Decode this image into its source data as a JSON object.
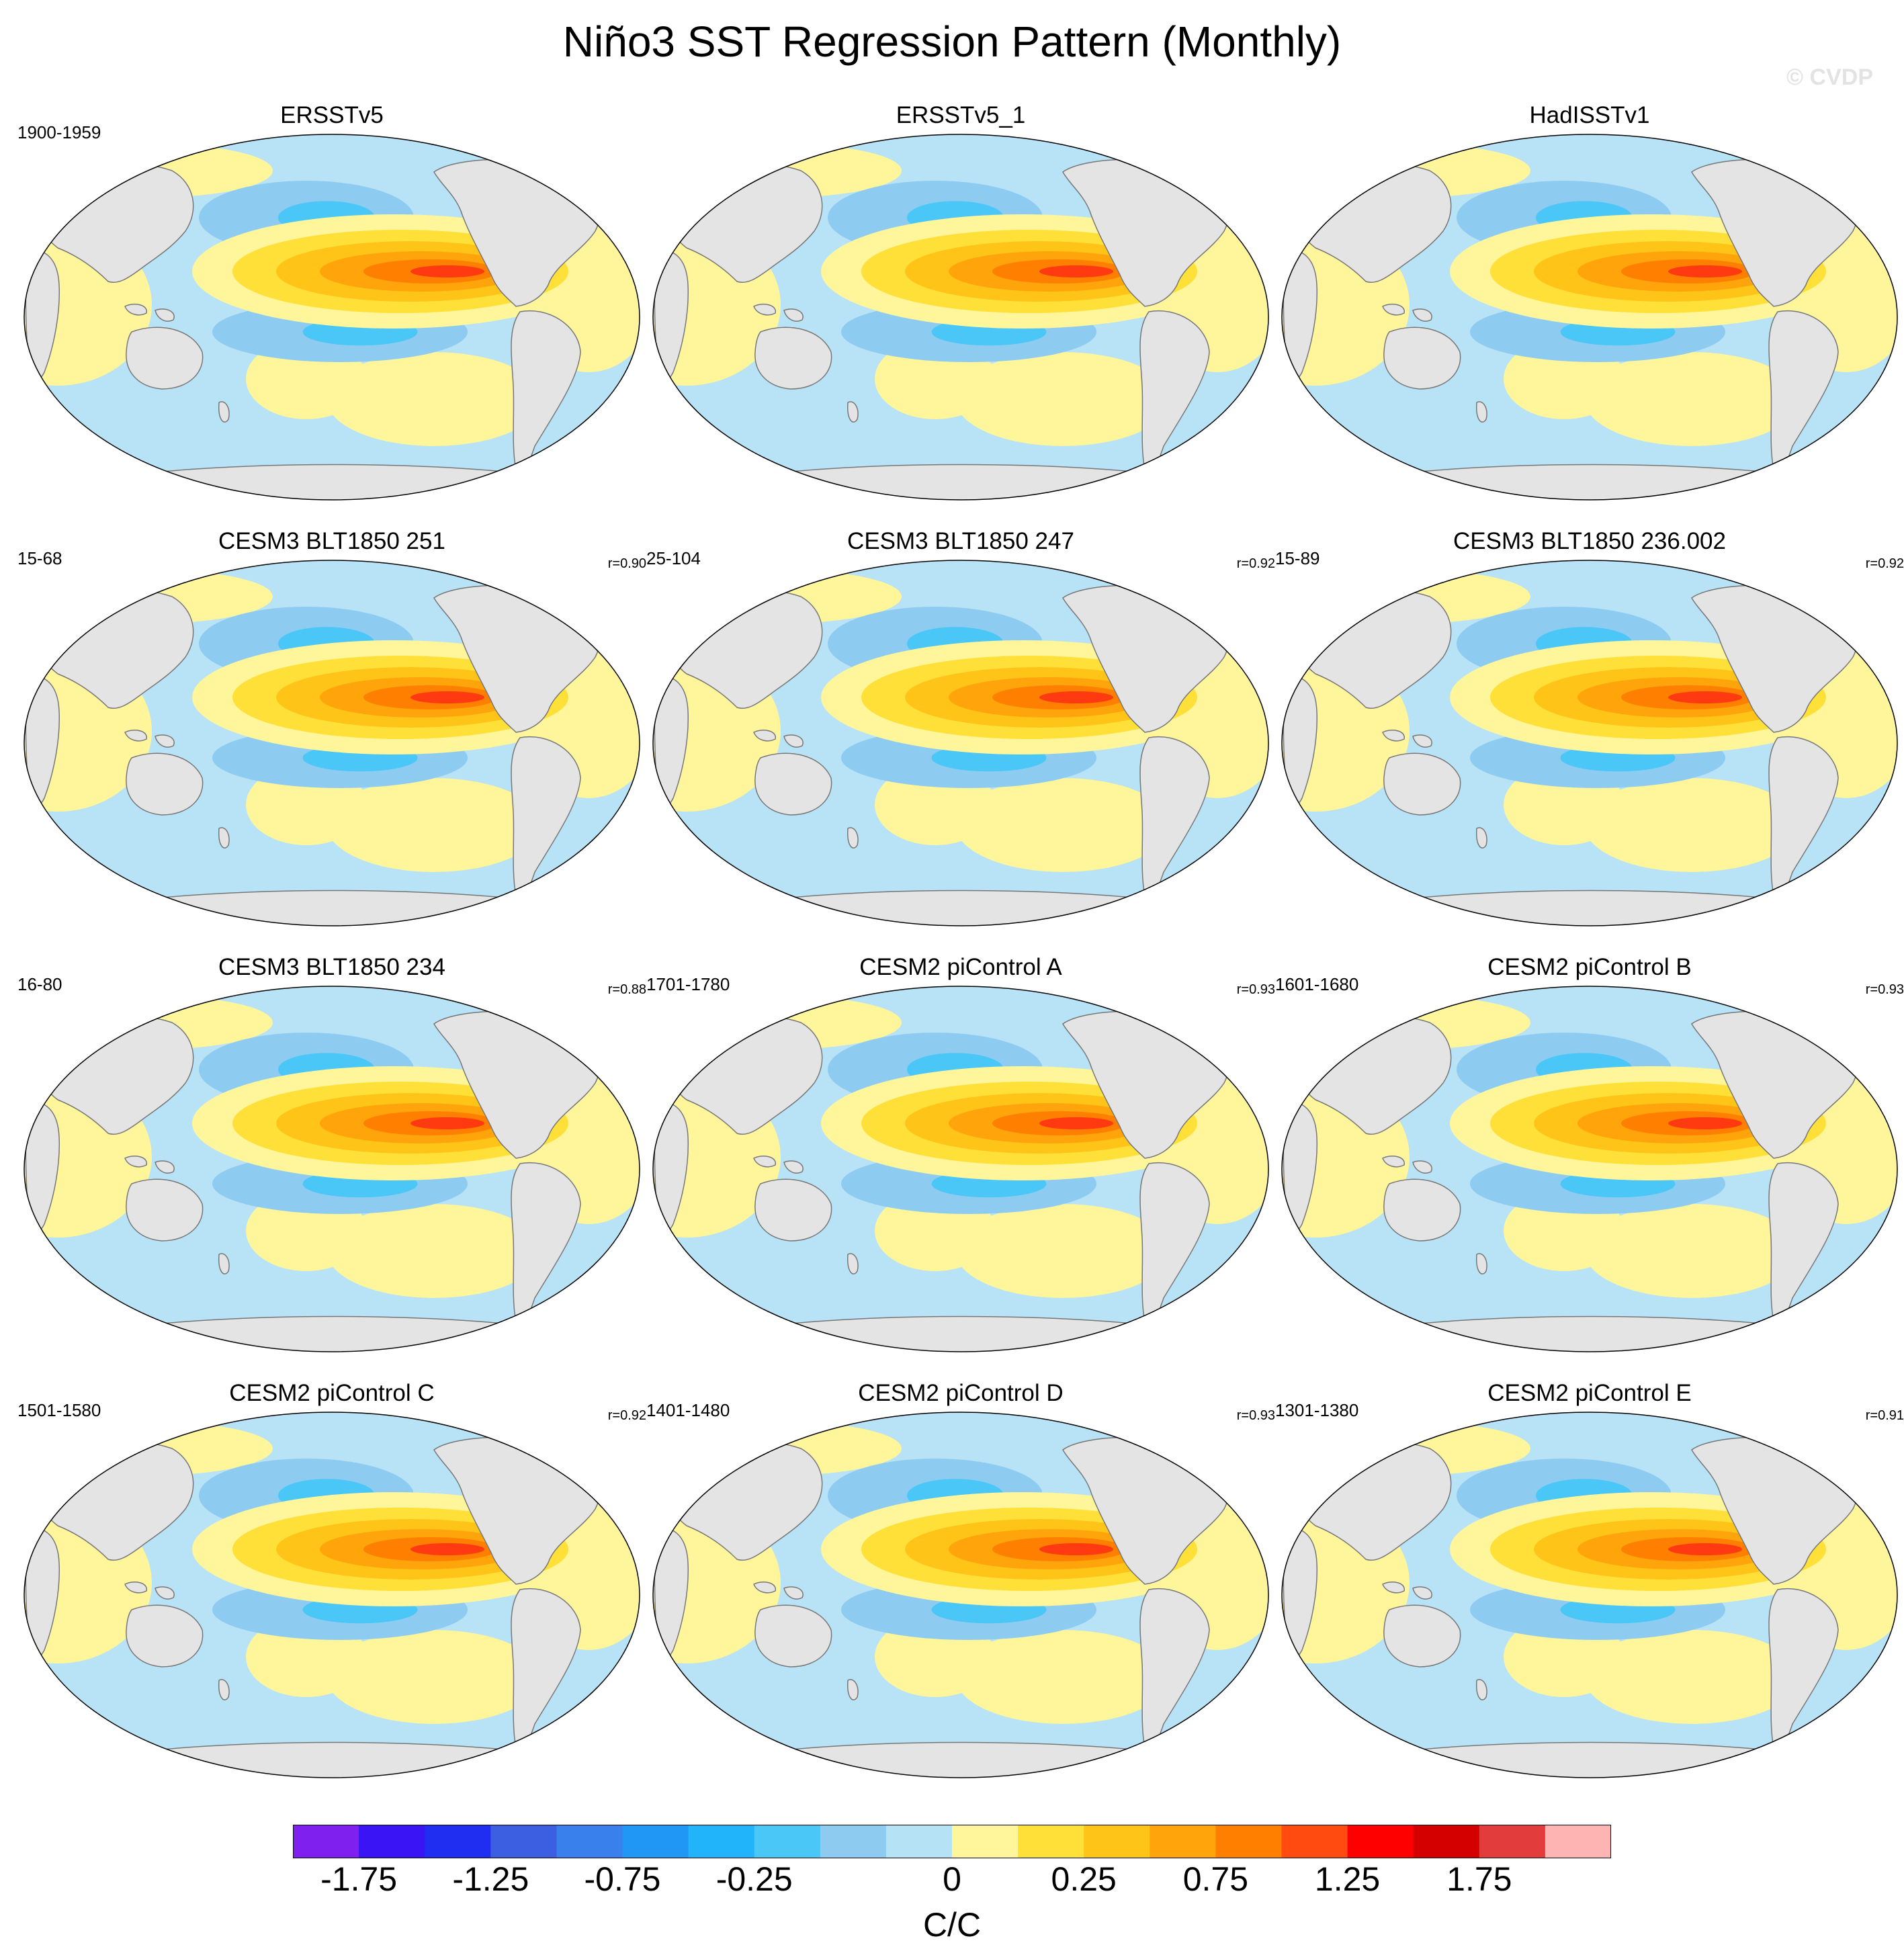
{
  "title": "Niño3 SST Regression Pattern (Monthly)",
  "watermark": "© CVDP",
  "panels": [
    {
      "title": "ERSSTv5",
      "period": "1900-1959",
      "r": ""
    },
    {
      "title": "ERSSTv5_1",
      "period": "",
      "r": ""
    },
    {
      "title": "HadISSTv1",
      "period": "",
      "r": ""
    },
    {
      "title": "CESM3 BLT1850 251",
      "period": "15-68",
      "r": "r=0.90"
    },
    {
      "title": "CESM3 BLT1850 247",
      "period": "25-104",
      "r": "r=0.92"
    },
    {
      "title": "CESM3 BLT1850 236.002",
      "period": "15-89",
      "r": "r=0.92"
    },
    {
      "title": "CESM3 BLT1850 234",
      "period": "16-80",
      "r": "r=0.88"
    },
    {
      "title": "CESM2 piControl A",
      "period": "1701-1780",
      "r": "r=0.93"
    },
    {
      "title": "CESM2 piControl B",
      "period": "1601-1680",
      "r": "r=0.93"
    },
    {
      "title": "CESM2 piControl C",
      "period": "1501-1580",
      "r": "r=0.92"
    },
    {
      "title": "CESM2 piControl D",
      "period": "1401-1480",
      "r": "r=0.93"
    },
    {
      "title": "CESM2 piControl E",
      "period": "1301-1380",
      "r": "r=0.91"
    }
  ],
  "colorbar": {
    "units": "C/C",
    "tick_labels": [
      "-1.75",
      "-1.25",
      "-0.75",
      "-0.25",
      "0",
      "0.25",
      "0.75",
      "1.25",
      "1.75"
    ],
    "colors": [
      "#7f20ef",
      "#3a14f5",
      "#1f2ef0",
      "#3b5fe0",
      "#3a80ec",
      "#2096f5",
      "#22b4fa",
      "#4ac6f7",
      "#8ecbf0",
      "#b5e2f5",
      "#fff59a",
      "#ffe038",
      "#ffc417",
      "#ffa40a",
      "#ff7f00",
      "#ff4a10",
      "#ff0000",
      "#d40000",
      "#e33c3c",
      "#ffb4b4"
    ]
  },
  "map_style": {
    "ocean_base": "#b8e2f6",
    "land": "#e4e4e4",
    "coast": "#777777",
    "warm_band": [
      "#fff59a",
      "#ffe038",
      "#ffc417",
      "#ffa40a",
      "#ff7f00",
      "#ff3a10"
    ],
    "cool_band": [
      "#8ecbf0",
      "#4ac6f7"
    ]
  }
}
